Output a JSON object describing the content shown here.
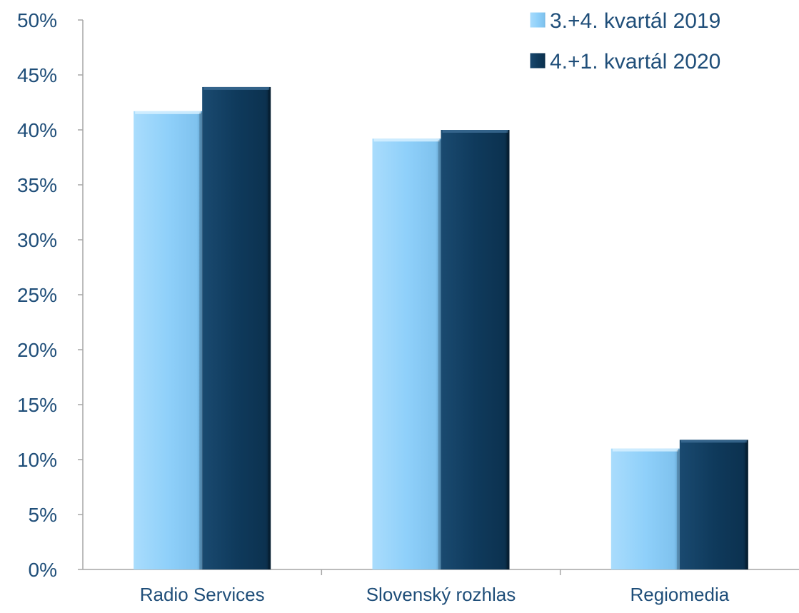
{
  "chart_data": {
    "type": "bar",
    "categories": [
      "Radio Services",
      "Slovenský rozhlas",
      "Regiomedia"
    ],
    "series": [
      {
        "name": "3.+4. kvartál 2019",
        "values": [
          41.7,
          39.2,
          11.0
        ],
        "color": "#8fd0fa"
      },
      {
        "name": "4.+1. kvartál 2020",
        "values": [
          43.9,
          40.0,
          11.8
        ],
        "color": "#0f3a5c"
      }
    ],
    "ylim": [
      0,
      50
    ],
    "yticks": [
      0,
      5,
      10,
      15,
      20,
      25,
      30,
      35,
      40,
      45,
      50
    ],
    "ytick_labels": [
      "0%",
      "5%",
      "10%",
      "15%",
      "20%",
      "25%",
      "30%",
      "35%",
      "40%",
      "45%",
      "50%"
    ],
    "title": "",
    "xlabel": "",
    "ylabel": "",
    "grid": false,
    "legend_position": "top-right",
    "text_color": "#1f4e79",
    "axis_color": "#a6a6a6"
  }
}
